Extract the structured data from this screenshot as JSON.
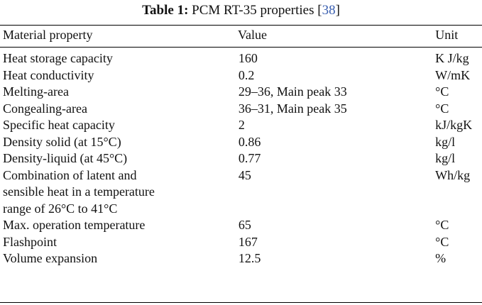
{
  "caption": {
    "label": "Table 1:",
    "title": "PCM RT-35 properties",
    "ref_open": "[",
    "ref": "38",
    "ref_close": "]"
  },
  "table": {
    "headers": [
      "Material property",
      "Value",
      "Unit"
    ],
    "rows": [
      {
        "property": "Heat storage capacity",
        "value": "160",
        "unit": "K J/kg"
      },
      {
        "property": "Heat conductivity",
        "value": "0.2",
        "unit": "W/mK"
      },
      {
        "property": "Melting-area",
        "value": "29–36, Main peak 33",
        "unit": "°C"
      },
      {
        "property": "Congealing-area",
        "value": "36–31, Main peak 35",
        "unit": "°C"
      },
      {
        "property": "Specific heat capacity",
        "value": "2",
        "unit": "kJ/kgK"
      },
      {
        "property": "Density solid (at 15°C)",
        "value": "0.86",
        "unit": "kg/l"
      },
      {
        "property": "Density-liquid (at 45°C)",
        "value": "0.77",
        "unit": "kg/l"
      },
      {
        "property": "Combination of latent and sensible heat in a temperature range of 26°C to 41°C",
        "value": "45",
        "unit": "Wh/kg"
      },
      {
        "property": "Max. operation temperature",
        "value": "65",
        "unit": "°C"
      },
      {
        "property": "Flashpoint",
        "value": "167",
        "unit": "°C"
      },
      {
        "property": "Volume expansion",
        "value": "12.5",
        "unit": "%"
      }
    ]
  }
}
